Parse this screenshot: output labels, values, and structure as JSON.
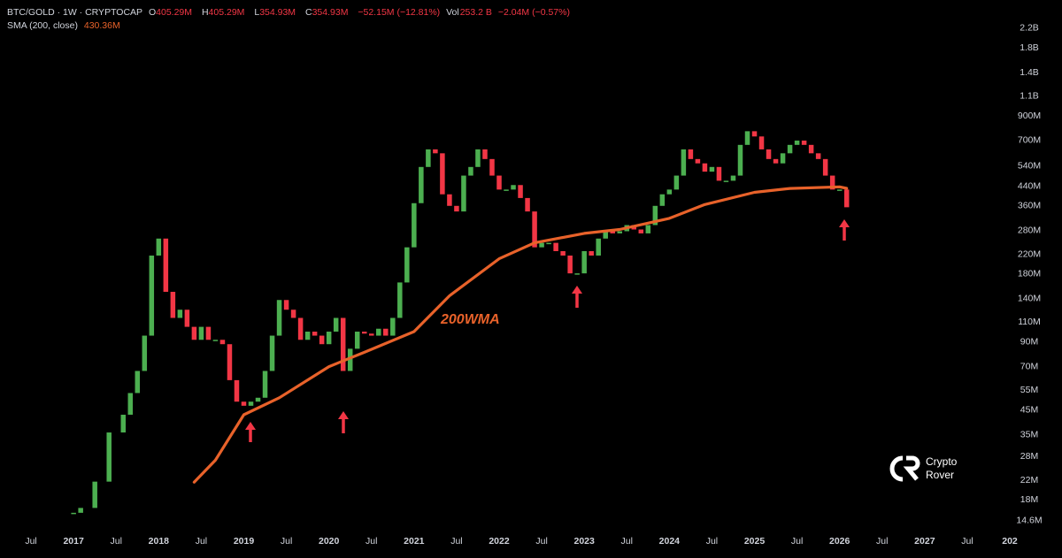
{
  "header": {
    "symbol": "BTC/GOLD · 1W · CRYPTOCAP",
    "ohlc": [
      {
        "label": "O",
        "value": "405.29M"
      },
      {
        "label": "H",
        "value": "405.29M"
      },
      {
        "label": "L",
        "value": "354.93M"
      },
      {
        "label": "C",
        "value": "354.93M"
      }
    ],
    "change": "−52.15M (−12.81%)",
    "volume_label": "Vol",
    "volume": "253.2 B",
    "volume_change": "−2.04M (−0.57%)",
    "indicator": "SMA (200, close)",
    "indicator_value": "430.36M"
  },
  "watermark": [
    "Crypto",
    "Rover"
  ],
  "chart_data": {
    "type": "candlestick",
    "annotation": "200WMA",
    "log_scale": true,
    "up_color": "#4caf50",
    "down_color": "#f23645",
    "xlim": [
      "2016-02",
      "2027-11"
    ],
    "xticks": [
      {
        "value": "2016-07",
        "label": "Jul"
      },
      {
        "value": "2017-01",
        "label": "2017"
      },
      {
        "value": "2017-07",
        "label": "Jul"
      },
      {
        "value": "2018-01",
        "label": "2018"
      },
      {
        "value": "2018-07",
        "label": "Jul"
      },
      {
        "value": "2019-01",
        "label": "2019"
      },
      {
        "value": "2019-07",
        "label": "Jul"
      },
      {
        "value": "2020-01",
        "label": "2020"
      },
      {
        "value": "2020-07",
        "label": "Jul"
      },
      {
        "value": "2021-01",
        "label": "2021"
      },
      {
        "value": "2021-07",
        "label": "Jul"
      },
      {
        "value": "2022-01",
        "label": "2022"
      },
      {
        "value": "2022-07",
        "label": "Jul"
      },
      {
        "value": "2023-01",
        "label": "2023"
      },
      {
        "value": "2023-07",
        "label": "Jul"
      },
      {
        "value": "2024-01",
        "label": "2024"
      },
      {
        "value": "2024-07",
        "label": "Jul"
      },
      {
        "value": "2025-01",
        "label": "2025"
      },
      {
        "value": "2025-07",
        "label": "Jul"
      },
      {
        "value": "2026-01",
        "label": "2026"
      },
      {
        "value": "2026-07",
        "label": "Jul"
      },
      {
        "value": "2027-01",
        "label": "2027"
      },
      {
        "value": "2027-07",
        "label": "Jul"
      },
      {
        "value": "2028-01",
        "label": "202"
      }
    ],
    "ylim": [
      12.6,
      2560
    ],
    "yticks": [
      {
        "value": 14.6,
        "label": "14.6M"
      },
      {
        "value": 18,
        "label": "18M"
      },
      {
        "value": 22,
        "label": "22M"
      },
      {
        "value": 28,
        "label": "28M"
      },
      {
        "value": 35,
        "label": "35M"
      },
      {
        "value": 45,
        "label": "45M"
      },
      {
        "value": 55,
        "label": "55M"
      },
      {
        "value": 70,
        "label": "70M"
      },
      {
        "value": 90,
        "label": "90M"
      },
      {
        "value": 110,
        "label": "110M"
      },
      {
        "value": 140,
        "label": "140M"
      },
      {
        "value": 180,
        "label": "180M"
      },
      {
        "value": 220,
        "label": "220M"
      },
      {
        "value": 280,
        "label": "280M"
      },
      {
        "value": 360,
        "label": "360M"
      },
      {
        "value": 440,
        "label": "440M"
      },
      {
        "value": 540,
        "label": "540M"
      },
      {
        "value": 700,
        "label": "700M"
      },
      {
        "value": 900,
        "label": "900M"
      },
      {
        "value": 1100,
        "label": "1.1B"
      },
      {
        "value": 1400,
        "label": "1.4B"
      },
      {
        "value": 1800,
        "label": "1.8B"
      },
      {
        "value": 2200,
        "label": "2.2B"
      }
    ],
    "x": [
      "2017-01",
      "2017-02",
      "2017-04",
      "2017-06",
      "2017-08",
      "2017-09",
      "2017-10",
      "2017-11",
      "2017-12",
      "2018-01",
      "2018-02",
      "2018-03",
      "2018-04",
      "2018-05",
      "2018-06",
      "2018-07",
      "2018-08",
      "2018-09",
      "2018-10",
      "2018-11",
      "2018-12",
      "2019-01",
      "2019-02",
      "2019-03",
      "2019-04",
      "2019-05",
      "2019-06",
      "2019-07",
      "2019-08",
      "2019-09",
      "2019-10",
      "2019-11",
      "2019-12",
      "2020-01",
      "2020-02",
      "2020-03",
      "2020-04",
      "2020-05",
      "2020-06",
      "2020-07",
      "2020-08",
      "2020-09",
      "2020-10",
      "2020-11",
      "2020-12",
      "2021-01",
      "2021-02",
      "2021-03",
      "2021-04",
      "2021-05",
      "2021-06",
      "2021-07",
      "2021-08",
      "2021-09",
      "2021-10",
      "2021-11",
      "2021-12",
      "2022-01",
      "2022-02",
      "2022-03",
      "2022-04",
      "2022-05",
      "2022-06",
      "2022-07",
      "2022-08",
      "2022-09",
      "2022-10",
      "2022-11",
      "2022-12",
      "2023-01",
      "2023-02",
      "2023-03",
      "2023-04",
      "2023-05",
      "2023-06",
      "2023-07",
      "2023-08",
      "2023-09",
      "2023-10",
      "2023-11",
      "2023-12",
      "2024-01",
      "2024-02",
      "2024-03",
      "2024-04",
      "2024-05",
      "2024-06",
      "2024-07",
      "2024-08",
      "2024-09",
      "2024-10",
      "2024-11",
      "2024-12",
      "2025-01",
      "2025-02",
      "2025-03",
      "2025-04",
      "2025-05",
      "2025-06",
      "2025-07",
      "2025-08",
      "2025-09",
      "2025-10",
      "2025-11",
      "2025-12",
      "2026-01",
      "2026-02"
    ],
    "series": [
      {
        "name": "BTC/GOLD",
        "values": [
          15.8,
          16.6,
          21.7,
          35.8,
          42.9,
          53.5,
          67,
          96,
          217,
          258,
          150,
          115,
          125,
          105,
          92,
          105,
          92,
          92,
          88,
          61,
          49,
          47,
          49,
          51,
          67,
          96,
          138,
          125,
          115,
          92,
          100,
          96,
          88,
          100,
          115,
          67,
          84,
          100,
          98,
          96,
          103,
          96,
          115,
          165,
          236,
          370,
          535,
          640,
          615,
          405,
          360,
          340,
          490,
          535,
          640,
          580,
          490,
          425,
          425,
          445,
          390,
          340,
          236,
          247,
          247,
          227,
          217,
          181,
          181,
          227,
          217,
          258,
          278,
          272,
          278,
          296,
          283,
          272,
          296,
          360,
          405,
          425,
          490,
          640,
          580,
          555,
          510,
          535,
          465,
          465,
          490,
          670,
          770,
          730,
          640,
          580,
          555,
          615,
          670,
          700,
          670,
          615,
          580,
          490,
          425,
          425,
          354.93
        ]
      },
      {
        "name": "SMA (200, close)",
        "color": "#e8622a",
        "x": [
          "2018-06",
          "2018-09",
          "2019-01",
          "2019-06",
          "2020-01",
          "2020-06",
          "2021-01",
          "2021-06",
          "2022-01",
          "2022-06",
          "2023-01",
          "2023-06",
          "2024-01",
          "2024-06",
          "2025-01",
          "2025-06",
          "2026-01",
          "2026-02"
        ],
        "values": [
          21.6,
          27,
          42.9,
          51,
          70,
          81,
          100,
          144,
          210,
          247,
          272,
          283,
          317,
          365,
          413,
          430,
          437,
          430.36
        ]
      }
    ]
  }
}
